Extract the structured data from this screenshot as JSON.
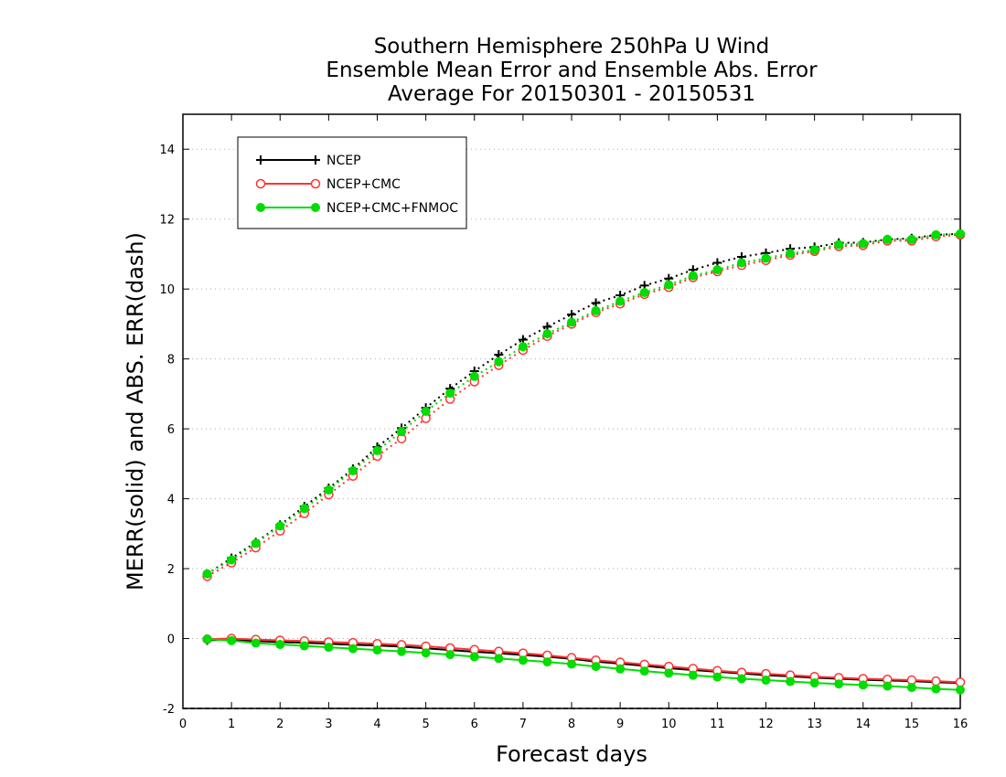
{
  "chart_data": {
    "type": "line",
    "title_lines": [
      "Southern Hemisphere 250hPa U Wind",
      "Ensemble Mean Error and Ensemble Abs. Error",
      "Average For 20150301 - 20150531"
    ],
    "xlabel": "Forecast days",
    "ylabel": "MERR(solid) and ABS. ERR(dash)",
    "xlim": [
      0,
      16
    ],
    "ylim": [
      -2,
      15
    ],
    "xticks": [
      "0",
      "1",
      "2",
      "3",
      "4",
      "5",
      "6",
      "7",
      "8",
      "9",
      "10",
      "11",
      "12",
      "13",
      "14",
      "15",
      "16"
    ],
    "yticks": [
      "-2",
      "0",
      "2",
      "4",
      "6",
      "8",
      "10",
      "12",
      "14"
    ],
    "grid": "horizontal dotted",
    "legend_position": "top-left",
    "x": [
      0.5,
      1,
      1.5,
      2,
      2.5,
      3,
      3.5,
      4,
      4.5,
      5,
      5.5,
      6,
      6.5,
      7,
      7.5,
      8,
      8.5,
      9,
      9.5,
      10,
      10.5,
      11,
      11.5,
      12,
      12.5,
      13,
      13.5,
      14,
      14.5,
      15,
      15.5,
      16
    ],
    "series": [
      {
        "name": "NCEP",
        "color": "#000000",
        "marker": "plus",
        "merr": [
          -0.05,
          -0.03,
          -0.07,
          -0.1,
          -0.12,
          -0.15,
          -0.18,
          -0.2,
          -0.23,
          -0.28,
          -0.33,
          -0.38,
          -0.42,
          -0.47,
          -0.52,
          -0.58,
          -0.66,
          -0.72,
          -0.78,
          -0.85,
          -0.9,
          -0.95,
          -1.0,
          -1.05,
          -1.08,
          -1.12,
          -1.15,
          -1.18,
          -1.2,
          -1.22,
          -1.25,
          -1.27
        ],
        "abs_err": [
          1.85,
          2.3,
          2.75,
          3.25,
          3.78,
          4.3,
          4.85,
          5.48,
          6.02,
          6.6,
          7.15,
          7.65,
          8.12,
          8.55,
          8.92,
          9.27,
          9.6,
          9.82,
          10.1,
          10.3,
          10.55,
          10.75,
          10.92,
          11.03,
          11.15,
          11.2,
          11.32,
          11.33,
          11.42,
          11.45,
          11.55,
          11.58
        ]
      },
      {
        "name": "NCEP+CMC",
        "color": "#ff3333",
        "marker": "open-circle",
        "merr": [
          -0.02,
          0.0,
          -0.03,
          -0.05,
          -0.07,
          -0.1,
          -0.12,
          -0.15,
          -0.18,
          -0.22,
          -0.27,
          -0.32,
          -0.37,
          -0.42,
          -0.48,
          -0.55,
          -0.62,
          -0.68,
          -0.74,
          -0.8,
          -0.86,
          -0.92,
          -0.97,
          -1.01,
          -1.05,
          -1.09,
          -1.12,
          -1.15,
          -1.17,
          -1.19,
          -1.22,
          -1.25
        ],
        "abs_err": [
          1.78,
          2.17,
          2.6,
          3.08,
          3.58,
          4.12,
          4.65,
          5.22,
          5.72,
          6.3,
          6.85,
          7.35,
          7.82,
          8.25,
          8.65,
          9.0,
          9.33,
          9.58,
          9.85,
          10.05,
          10.33,
          10.5,
          10.68,
          10.82,
          10.97,
          11.08,
          11.22,
          11.25,
          11.38,
          11.38,
          11.5,
          11.55
        ]
      },
      {
        "name": "NCEP+CMC+FNMOC",
        "color": "#00dd00",
        "marker": "filled-circle",
        "merr": [
          -0.02,
          -0.06,
          -0.13,
          -0.17,
          -0.21,
          -0.25,
          -0.29,
          -0.33,
          -0.37,
          -0.41,
          -0.46,
          -0.52,
          -0.57,
          -0.62,
          -0.67,
          -0.73,
          -0.8,
          -0.87,
          -0.93,
          -0.99,
          -1.05,
          -1.1,
          -1.15,
          -1.19,
          -1.23,
          -1.27,
          -1.3,
          -1.33,
          -1.36,
          -1.4,
          -1.44,
          -1.47
        ],
        "abs_err": [
          1.85,
          2.25,
          2.72,
          3.22,
          3.72,
          4.25,
          4.8,
          5.38,
          5.92,
          6.5,
          7.02,
          7.5,
          7.92,
          8.35,
          8.72,
          9.05,
          9.38,
          9.65,
          9.9,
          10.12,
          10.38,
          10.55,
          10.75,
          10.88,
          11.02,
          11.12,
          11.27,
          11.3,
          11.42,
          11.42,
          11.55,
          11.58
        ]
      }
    ]
  }
}
